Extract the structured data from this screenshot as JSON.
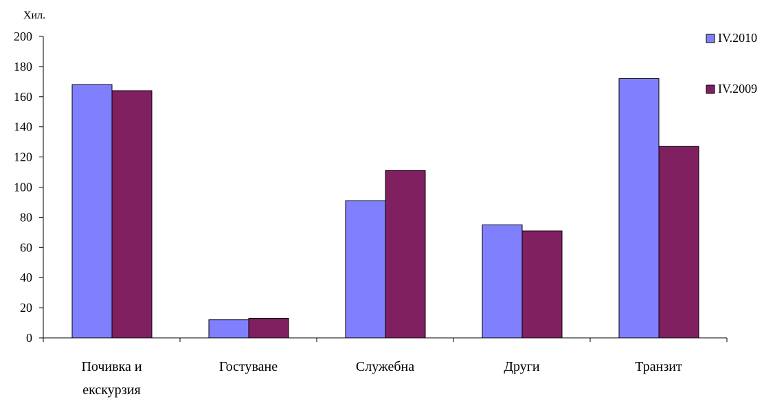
{
  "chart_data": {
    "type": "bar",
    "unit_label": "Хил.",
    "categories": [
      [
        "Почивка и",
        "екскурзия"
      ],
      [
        "Гостуване"
      ],
      [
        "Служебна"
      ],
      [
        "Други"
      ],
      [
        "Транзит"
      ]
    ],
    "series": [
      {
        "name": "IV.2010",
        "values": [
          168,
          12,
          91,
          75,
          172
        ],
        "color": "#8080ff"
      },
      {
        "name": "IV.2009",
        "values": [
          164,
          13,
          111,
          71,
          127
        ],
        "color": "#802060"
      }
    ],
    "ylim": [
      0,
      200
    ],
    "yticks": [
      0,
      20,
      40,
      60,
      80,
      100,
      120,
      140,
      160,
      180,
      200
    ],
    "grid": false,
    "legend_position": "top-right"
  }
}
